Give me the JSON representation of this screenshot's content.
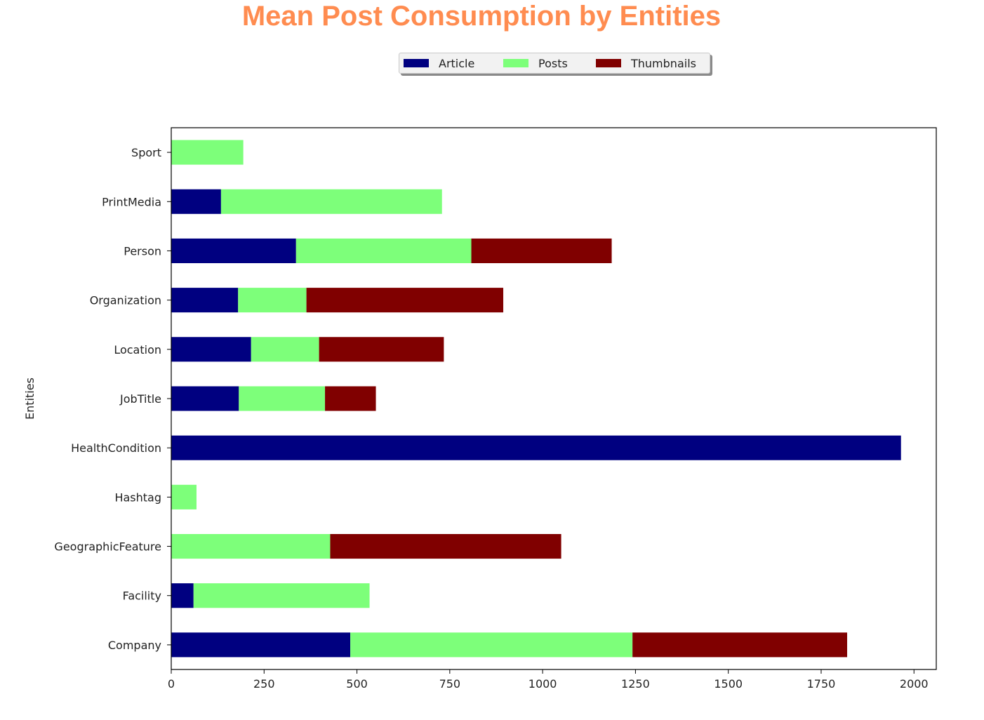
{
  "chart_data": {
    "type": "bar",
    "orientation": "horizontal",
    "stacked": true,
    "title": "Mean Post Consumption by Entities",
    "ylabel": "Entities",
    "xlabel": "",
    "xlim": [
      0,
      2060
    ],
    "xticks": [
      0,
      250,
      500,
      750,
      1000,
      1250,
      1500,
      1750,
      2000
    ],
    "xtick_labels": [
      "0",
      "250",
      "500",
      "750",
      "1000",
      "1250",
      "1500",
      "1750",
      "2000"
    ],
    "categories": [
      "Company",
      "Facility",
      "GeographicFeature",
      "Hashtag",
      "HealthCondition",
      "JobTitle",
      "Location",
      "Organization",
      "Person",
      "PrintMedia",
      "Sport"
    ],
    "series": [
      {
        "name": "Article",
        "color": "#000080",
        "values": [
          482,
          60,
          0,
          0,
          1965,
          182,
          215,
          180,
          336,
          134,
          0
        ]
      },
      {
        "name": "Posts",
        "color": "#7dff7a",
        "values": [
          760,
          474,
          428,
          68,
          0,
          232,
          183,
          184,
          472,
          595,
          194
        ]
      },
      {
        "name": "Thumbnails",
        "color": "#800000",
        "values": [
          578,
          0,
          622,
          0,
          0,
          137,
          336,
          530,
          378,
          0,
          0
        ]
      }
    ],
    "legend_position": "top-center",
    "grid": false,
    "title_color": "#ff8c50"
  }
}
